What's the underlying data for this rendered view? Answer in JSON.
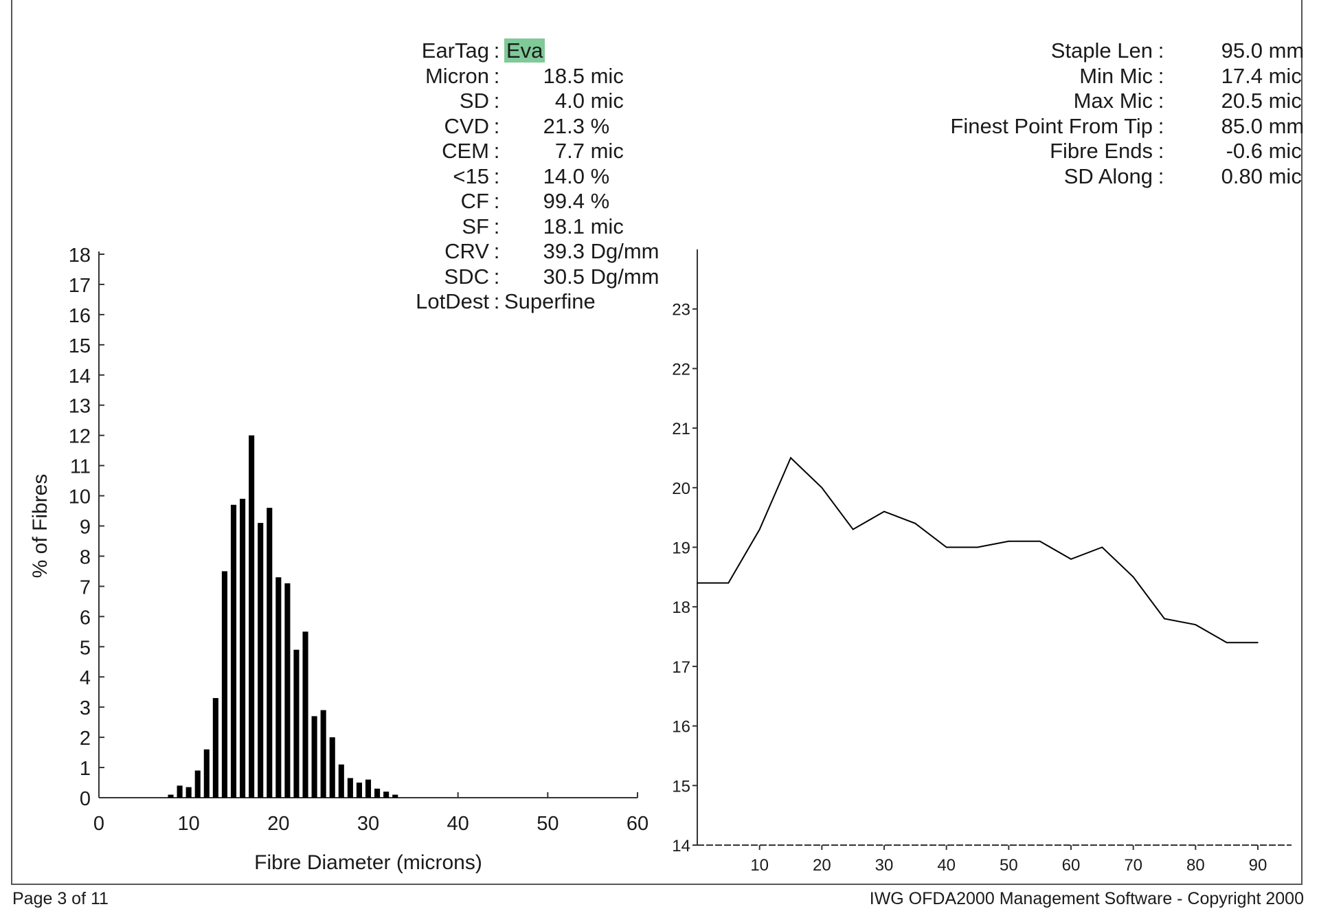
{
  "stats_left": [
    {
      "label": "EarTag",
      "value": "Eva",
      "unit": "",
      "highlight": true
    },
    {
      "label": "Micron",
      "value": "18.5",
      "unit": " mic",
      "highlight": false
    },
    {
      "label": "SD",
      "value": "4.0",
      "unit": " mic",
      "highlight": false
    },
    {
      "label": "CVD",
      "value": "21.3",
      "unit": " %",
      "highlight": false
    },
    {
      "label": "CEM",
      "value": "7.7",
      "unit": " mic",
      "highlight": false
    },
    {
      "label": "<15",
      "value": "14.0",
      "unit": " %",
      "highlight": false
    },
    {
      "label": "CF",
      "value": "99.4",
      "unit": " %",
      "highlight": false
    },
    {
      "label": "SF",
      "value": "18.1",
      "unit": " mic",
      "highlight": false
    },
    {
      "label": "CRV",
      "value": "39.3",
      "unit": " Dg/mm",
      "highlight": false
    },
    {
      "label": "SDC",
      "value": "30.5",
      "unit": " Dg/mm",
      "highlight": false
    },
    {
      "label": "LotDest",
      "value": "Superfine",
      "unit": "",
      "highlight": false
    }
  ],
  "stats_right": [
    {
      "label": "Staple Len",
      "value": "95.0",
      "unit": " mm"
    },
    {
      "label": "Min Mic",
      "value": "17.4",
      "unit": " mic"
    },
    {
      "label": "Max Mic",
      "value": "20.5",
      "unit": " mic"
    },
    {
      "label": "Finest Point From Tip",
      "value": "85.0",
      "unit": " mm"
    },
    {
      "label": "Fibre Ends",
      "value": "-0.6",
      "unit": " mic"
    },
    {
      "label": "SD Along",
      "value": "0.80",
      "unit": " mic"
    }
  ],
  "highlight_color": "#7fca98",
  "footer": {
    "page": "Page 3 of 11",
    "copyright": "IWG OFDA2000 Management Software - Copyright 2000"
  },
  "chart_data": [
    {
      "type": "bar",
      "xlabel": "Fibre Diameter (microns)",
      "ylabel": "% of Fibres",
      "xlim": [
        0,
        60
      ],
      "ylim": [
        0,
        18
      ],
      "xticks": [
        0,
        10,
        20,
        30,
        40,
        50,
        60
      ],
      "yticks": [
        0,
        1,
        2,
        3,
        4,
        5,
        6,
        7,
        8,
        9,
        10,
        11,
        12,
        13,
        14,
        15,
        16,
        17,
        18
      ],
      "x": [
        8,
        9,
        10,
        11,
        12,
        13,
        14,
        15,
        16,
        17,
        18,
        19,
        20,
        21,
        22,
        23,
        24,
        25,
        26,
        27,
        28,
        29,
        30,
        31,
        32,
        33
      ],
      "values": [
        0.1,
        0.4,
        0.35,
        0.9,
        1.6,
        3.3,
        7.5,
        9.7,
        9.9,
        12.0,
        9.1,
        9.6,
        7.3,
        7.1,
        4.9,
        5.5,
        2.7,
        2.9,
        2.0,
        1.1,
        0.65,
        0.5,
        0.6,
        0.3,
        0.2,
        0.1
      ],
      "bar_color": "#000000"
    },
    {
      "type": "line",
      "xlabel": "",
      "ylabel": "",
      "xlim": [
        0,
        95
      ],
      "ylim": [
        14,
        24
      ],
      "xticks": [
        10,
        20,
        30,
        40,
        50,
        60,
        70,
        80,
        90
      ],
      "yticks": [
        14,
        15,
        16,
        17,
        18,
        19,
        20,
        21,
        22,
        23
      ],
      "series": [
        {
          "x": [
            0,
            5,
            10,
            15,
            20,
            25,
            30,
            35,
            40,
            45,
            50,
            55,
            60,
            65,
            70,
            75,
            80,
            85,
            90
          ],
          "values": [
            18.4,
            18.4,
            19.3,
            20.5,
            20.0,
            19.3,
            19.6,
            19.4,
            19.0,
            19.0,
            19.1,
            19.1,
            18.8,
            19.0,
            18.5,
            17.8,
            17.7,
            17.4,
            17.4
          ]
        }
      ],
      "line_color": "#000000"
    }
  ]
}
